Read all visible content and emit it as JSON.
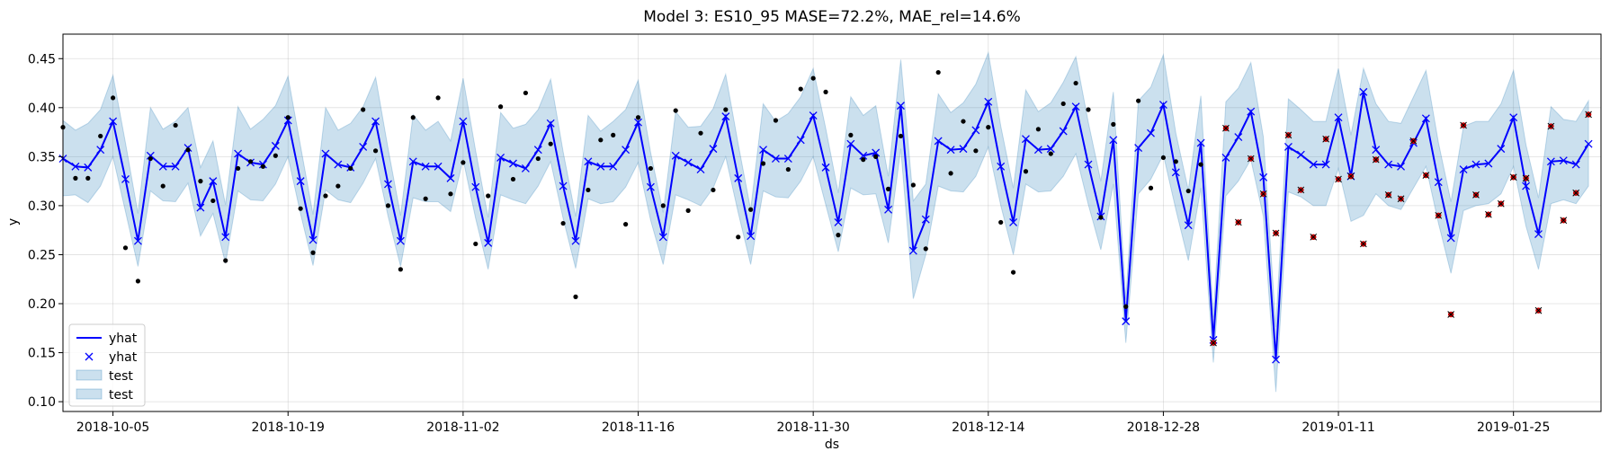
{
  "chart_data": {
    "type": "line",
    "title": "Model 3: ES10_95 MASE=72.2%, MAE_rel=14.6%",
    "xlabel": "ds",
    "ylabel": "y",
    "x_range": [
      "2018-10-01",
      "2019-02-01"
    ],
    "ylim": [
      0.09,
      0.475
    ],
    "grid": true,
    "legend_position": "lower-left",
    "x_ticks": [
      "2018-10-05",
      "2018-10-19",
      "2018-11-02",
      "2018-11-16",
      "2018-11-30",
      "2018-12-14",
      "2018-12-28",
      "2019-01-11",
      "2019-01-25"
    ],
    "y_ticks": [
      "0.10",
      "0.15",
      "0.20",
      "0.25",
      "0.30",
      "0.35",
      "0.40",
      "0.45"
    ],
    "legend": [
      {
        "label": "yhat",
        "kind": "line",
        "color": "#0000ff"
      },
      {
        "label": "yhat",
        "kind": "marker",
        "color": "#0000ff"
      },
      {
        "label": "test",
        "kind": "band",
        "color": "#1f77b4"
      },
      {
        "label": "test",
        "kind": "band",
        "color": "#1f77b4"
      }
    ],
    "colors": {
      "forecast": "#0000ff",
      "band": "#1f77b4",
      "train": "#000000",
      "test": "#cc0000"
    },
    "forecast_start": "2018-10-01",
    "train_end_index": 92,
    "yhat": [
      0.348,
      0.34,
      0.339,
      0.357,
      0.386,
      0.327,
      0.264,
      0.351,
      0.34,
      0.34,
      0.359,
      0.298,
      0.325,
      0.268,
      0.353,
      0.344,
      0.342,
      0.361,
      0.387,
      0.325,
      0.265,
      0.353,
      0.342,
      0.339,
      0.36,
      0.386,
      0.322,
      0.264,
      0.345,
      0.34,
      0.34,
      0.328,
      0.386,
      0.319,
      0.262,
      0.349,
      0.343,
      0.338,
      0.357,
      0.384,
      0.32,
      0.264,
      0.345,
      0.34,
      0.34,
      0.357,
      0.385,
      0.319,
      0.268,
      0.351,
      0.344,
      0.337,
      0.358,
      0.391,
      0.328,
      0.269,
      0.357,
      0.348,
      0.348,
      0.367,
      0.392,
      0.339,
      0.283,
      0.363,
      0.351,
      0.354,
      0.296,
      0.402,
      0.254,
      0.286,
      0.366,
      0.357,
      0.358,
      0.377,
      0.406,
      0.34,
      0.283,
      0.368,
      0.357,
      0.358,
      0.376,
      0.401,
      0.342,
      0.289,
      0.367,
      0.182,
      0.359,
      0.374,
      0.403,
      0.334,
      0.28,
      0.364,
      0.163,
      0.349,
      0.37,
      0.396,
      0.329,
      0.143,
      0.36,
      0.352,
      0.342,
      0.342,
      0.39,
      0.33,
      0.416,
      0.357,
      0.342,
      0.34,
      0.364,
      0.389,
      0.324,
      0.267,
      0.337,
      0.342,
      0.343,
      0.358,
      0.39,
      0.32,
      0.271,
      0.345,
      0.346,
      0.342,
      0.363
    ],
    "yhat_lower": [
      0.31,
      0.311,
      0.303,
      0.32,
      0.35,
      0.294,
      0.238,
      0.315,
      0.305,
      0.304,
      0.323,
      0.269,
      0.292,
      0.241,
      0.315,
      0.306,
      0.305,
      0.322,
      0.35,
      0.292,
      0.239,
      0.316,
      0.306,
      0.303,
      0.323,
      0.348,
      0.289,
      0.238,
      0.308,
      0.304,
      0.304,
      0.294,
      0.347,
      0.287,
      0.235,
      0.311,
      0.306,
      0.302,
      0.32,
      0.345,
      0.287,
      0.236,
      0.307,
      0.302,
      0.304,
      0.319,
      0.344,
      0.285,
      0.24,
      0.311,
      0.306,
      0.3,
      0.318,
      0.35,
      0.293,
      0.24,
      0.315,
      0.309,
      0.308,
      0.325,
      0.35,
      0.301,
      0.253,
      0.318,
      0.311,
      0.312,
      0.262,
      0.358,
      0.205,
      0.25,
      0.32,
      0.315,
      0.314,
      0.33,
      0.36,
      0.3,
      0.25,
      0.322,
      0.314,
      0.315,
      0.33,
      0.353,
      0.301,
      0.255,
      0.322,
      0.16,
      0.312,
      0.327,
      0.352,
      0.296,
      0.244,
      0.318,
      0.14,
      0.31,
      0.325,
      0.347,
      0.289,
      0.11,
      0.314,
      0.309,
      0.3,
      0.3,
      0.338,
      0.284,
      0.29,
      0.312,
      0.3,
      0.296,
      0.318,
      0.34,
      0.282,
      0.231,
      0.295,
      0.3,
      0.302,
      0.312,
      0.34,
      0.279,
      0.235,
      0.302,
      0.306,
      0.302,
      0.32
    ],
    "yhat_upper": [
      0.387,
      0.377,
      0.384,
      0.398,
      0.433,
      0.364,
      0.292,
      0.4,
      0.378,
      0.386,
      0.4,
      0.339,
      0.366,
      0.301,
      0.401,
      0.378,
      0.388,
      0.402,
      0.432,
      0.361,
      0.291,
      0.4,
      0.377,
      0.384,
      0.401,
      0.431,
      0.358,
      0.29,
      0.393,
      0.377,
      0.386,
      0.366,
      0.43,
      0.356,
      0.288,
      0.395,
      0.379,
      0.383,
      0.398,
      0.429,
      0.355,
      0.289,
      0.392,
      0.376,
      0.386,
      0.398,
      0.428,
      0.354,
      0.293,
      0.396,
      0.38,
      0.381,
      0.399,
      0.434,
      0.363,
      0.296,
      0.404,
      0.386,
      0.394,
      0.411,
      0.44,
      0.379,
      0.313,
      0.411,
      0.392,
      0.402,
      0.33,
      0.449,
      0.305,
      0.322,
      0.414,
      0.395,
      0.405,
      0.424,
      0.456,
      0.381,
      0.318,
      0.418,
      0.396,
      0.405,
      0.426,
      0.452,
      0.385,
      0.325,
      0.416,
      0.204,
      0.407,
      0.421,
      0.454,
      0.374,
      0.316,
      0.412,
      0.186,
      0.406,
      0.42,
      0.446,
      0.37,
      0.176,
      0.409,
      0.398,
      0.386,
      0.386,
      0.44,
      0.372,
      0.44,
      0.404,
      0.386,
      0.384,
      0.411,
      0.438,
      0.364,
      0.304,
      0.381,
      0.386,
      0.386,
      0.404,
      0.438,
      0.362,
      0.308,
      0.401,
      0.388,
      0.386,
      0.407
    ],
    "y_actual": [
      0.38,
      0.328,
      0.328,
      0.371,
      0.41,
      0.257,
      0.223,
      0.348,
      0.32,
      0.382,
      0.357,
      0.325,
      0.305,
      0.244,
      0.338,
      0.345,
      0.34,
      0.351,
      0.39,
      0.297,
      0.252,
      0.31,
      0.32,
      0.338,
      0.398,
      0.356,
      0.3,
      0.235,
      0.39,
      0.307,
      0.41,
      0.312,
      0.344,
      0.261,
      0.31,
      0.401,
      0.327,
      0.415,
      0.348,
      0.363,
      0.282,
      0.207,
      0.316,
      0.367,
      0.372,
      0.281,
      0.39,
      0.338,
      0.3,
      0.397,
      0.295,
      0.374,
      0.316,
      0.398,
      0.268,
      0.296,
      0.343,
      0.387,
      0.337,
      0.419,
      0.43,
      0.416,
      0.27,
      0.372,
      0.347,
      0.35,
      0.317,
      0.371,
      0.321,
      0.256,
      0.436,
      0.333,
      0.386,
      0.356,
      0.38,
      0.283,
      0.232,
      0.335,
      0.378,
      0.353,
      0.404,
      0.425,
      0.398,
      0.288,
      0.383,
      0.197,
      0.407,
      0.318,
      0.349,
      0.345,
      0.315,
      0.342,
      0.16,
      0.379,
      0.283,
      0.348,
      0.312,
      0.272,
      0.372,
      0.316,
      0.268,
      0.368,
      0.327,
      0.33,
      0.261,
      0.347,
      0.311,
      0.307,
      0.366,
      0.331,
      0.29,
      0.189,
      0.382,
      0.311,
      0.291,
      0.302,
      0.329,
      0.328,
      0.193,
      0.381,
      0.285,
      0.313,
      0.393
    ]
  }
}
